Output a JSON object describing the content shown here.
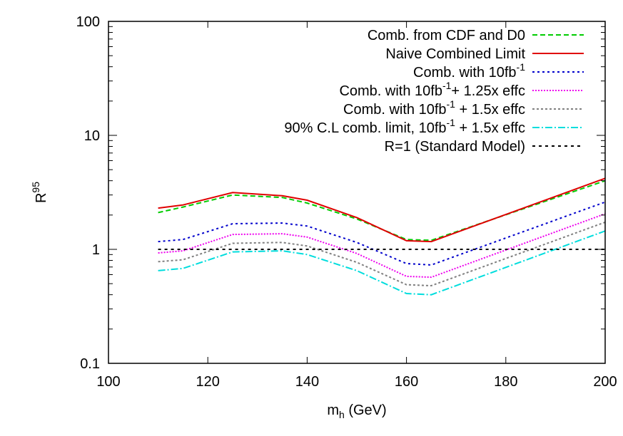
{
  "chart_data": {
    "type": "line",
    "title": "",
    "xlabel": {
      "main": "m",
      "sub": "h",
      "rest": " (GeV)"
    },
    "ylabel": {
      "main": "R",
      "sup": "95"
    },
    "xlim": [
      100,
      200
    ],
    "ylim": [
      0.1,
      100
    ],
    "yscale": "log",
    "x_ticks": [
      100,
      120,
      140,
      160,
      180,
      200
    ],
    "y_ticks": [
      {
        "value": 0.1,
        "label": "0.1"
      },
      {
        "value": 1,
        "label": "1"
      },
      {
        "value": 10,
        "label": "10"
      },
      {
        "value": 100,
        "label": "100"
      }
    ],
    "legend_position": "top-right",
    "grid": false,
    "series": [
      {
        "name": "Comb. from CDF and D0",
        "legend": [
          {
            "t": "Comb. from CDF and D0"
          }
        ],
        "color": "#00cc00",
        "dash": "7,4",
        "x": [
          110,
          115,
          125,
          135,
          140,
          150,
          160,
          165,
          200
        ],
        "y": [
          2.1,
          2.35,
          3.0,
          2.85,
          2.55,
          1.85,
          1.22,
          1.2,
          4.0
        ]
      },
      {
        "name": "Naive Combined Limit",
        "legend": [
          {
            "t": "Naive Combined Limit"
          }
        ],
        "color": "#e00000",
        "dash": "",
        "x": [
          110,
          115,
          125,
          135,
          140,
          150,
          160,
          165,
          200
        ],
        "y": [
          2.3,
          2.45,
          3.15,
          2.95,
          2.7,
          1.9,
          1.19,
          1.17,
          4.2
        ]
      },
      {
        "name": "Comb. with 10fb-1",
        "legend": [
          {
            "t": "Comb. with 10fb"
          },
          {
            "sup": "-1"
          }
        ],
        "color": "#0000cc",
        "dash": "3,4",
        "x": [
          110,
          115,
          125,
          135,
          140,
          150,
          160,
          165,
          200
        ],
        "y": [
          1.17,
          1.22,
          1.68,
          1.7,
          1.6,
          1.15,
          0.75,
          0.73,
          2.6
        ]
      },
      {
        "name": "Comb. with 10fb-1 + 1.25x effc",
        "legend": [
          {
            "t": "Comb. with 10fb"
          },
          {
            "sup": "-1"
          },
          {
            "t": "+ 1.25x effc"
          }
        ],
        "color": "#ee00ee",
        "dash": "2,2",
        "x": [
          110,
          115,
          125,
          135,
          140,
          150,
          160,
          165,
          200
        ],
        "y": [
          0.93,
          0.97,
          1.35,
          1.37,
          1.28,
          0.92,
          0.58,
          0.57,
          2.05
        ]
      },
      {
        "name": "Comb. with 10fb-1 + 1.5x effc",
        "legend": [
          {
            "t": "Comb. with 10fb"
          },
          {
            "sup": "-1"
          },
          {
            "t": " + 1.5x effc"
          }
        ],
        "color": "#808080",
        "dash": "3,3",
        "x": [
          110,
          115,
          125,
          135,
          140,
          150,
          160,
          165,
          200
        ],
        "y": [
          0.78,
          0.81,
          1.13,
          1.15,
          1.07,
          0.77,
          0.49,
          0.48,
          1.73
        ]
      },
      {
        "name": "90% C.L comb. limit, 10fb-1 + 1.5x effc",
        "legend": [
          {
            "t": "90% C.L comb. limit, 10fb"
          },
          {
            "sup": "-1"
          },
          {
            "t": " + 1.5x effc"
          }
        ],
        "color": "#00dddd",
        "dash": "10,3,2,3",
        "x": [
          110,
          115,
          125,
          135,
          140,
          150,
          160,
          165,
          200
        ],
        "y": [
          0.65,
          0.68,
          0.95,
          0.97,
          0.9,
          0.65,
          0.41,
          0.4,
          1.45
        ]
      },
      {
        "name": "R=1 (Standard Model)",
        "legend": [
          {
            "t": "R=1 (Standard Model)"
          }
        ],
        "color": "#000000",
        "dash": "4,5",
        "x": [
          110,
          200
        ],
        "y": [
          1,
          1
        ]
      }
    ]
  }
}
